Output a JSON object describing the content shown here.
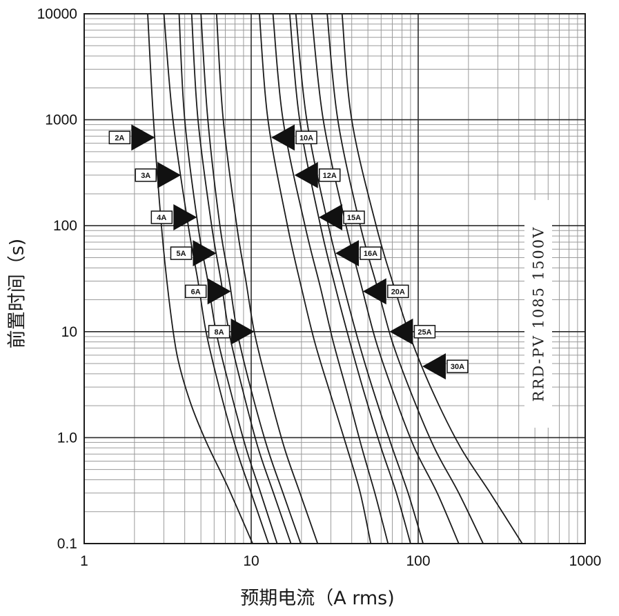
{
  "chart_data": {
    "type": "line",
    "title": "",
    "xlabel": "预期电流（A rms)",
    "ylabel": "前置时间（s)",
    "x_scale": "log",
    "y_scale": "log",
    "xlim": [
      1,
      1000
    ],
    "ylim": [
      0.1,
      10000
    ],
    "grid": true,
    "x_tick_labels": [
      "1",
      "10",
      "100",
      "1000"
    ],
    "y_tick_labels": [
      "10000",
      "1000",
      "100",
      "10",
      "1.0",
      "0.1"
    ],
    "x_ticks": [
      1,
      10,
      100,
      1000
    ],
    "y_ticks": [
      10000,
      1000,
      100,
      10,
      1,
      0.1
    ],
    "annotation": "RRD-PV 1085 1500V",
    "series": [
      {
        "name": "2A",
        "tag_time": 680,
        "tag_side": "left",
        "x": [
          2.4,
          2.6,
          2.9,
          3.2,
          3.6,
          4.3,
          5.4,
          7.2,
          10.2
        ],
        "y": [
          10000,
          1000,
          100,
          22,
          6,
          2.2,
          0.9,
          0.35,
          0.1
        ]
      },
      {
        "name": "3A",
        "tag_time": 300,
        "tag_side": "left",
        "x": [
          3.0,
          3.4,
          4.2,
          4.8,
          5.4,
          6.5,
          8.1,
          10.0,
          12.7
        ],
        "y": [
          10000,
          1000,
          100,
          30,
          9.5,
          2.8,
          0.8,
          0.3,
          0.1
        ]
      },
      {
        "name": "4A",
        "tag_time": 120,
        "tag_side": "left",
        "x": [
          3.7,
          4.0,
          4.8,
          5.5,
          6.2,
          7.5,
          9.3,
          11.4,
          14.3
        ],
        "y": [
          10000,
          1000,
          100,
          30,
          9.5,
          2.8,
          0.8,
          0.3,
          0.1
        ]
      },
      {
        "name": "5A",
        "tag_time": 55,
        "tag_side": "left",
        "x": [
          4.4,
          4.8,
          5.8,
          6.6,
          7.4,
          8.9,
          11.0,
          13.6,
          17.3
        ],
        "y": [
          10000,
          1000,
          100,
          30,
          9.5,
          2.8,
          0.8,
          0.3,
          0.1
        ]
      },
      {
        "name": "6A",
        "tag_time": 24,
        "tag_side": "left",
        "x": [
          5.0,
          5.5,
          6.5,
          7.4,
          8.3,
          10.0,
          12.5,
          15.5,
          19.8
        ],
        "y": [
          10000,
          1000,
          100,
          30,
          9.5,
          2.8,
          0.8,
          0.3,
          0.1
        ]
      },
      {
        "name": "8A",
        "tag_time": 10,
        "tag_side": "left",
        "x": [
          6.2,
          6.8,
          8.2,
          9.3,
          10.5,
          12.7,
          15.8,
          19.6,
          25.0
        ],
        "y": [
          10000,
          1000,
          100,
          30,
          9.5,
          2.8,
          0.8,
          0.3,
          0.1
        ]
      },
      {
        "name": "10A",
        "tag_time": 680,
        "tag_side": "right",
        "x": [
          11.2,
          12.6,
          16.5,
          20.0,
          24.0,
          30.0,
          37.5,
          45.0,
          52.0
        ],
        "y": [
          10000,
          1000,
          100,
          26,
          8.0,
          2.5,
          0.8,
          0.3,
          0.1
        ]
      },
      {
        "name": "12A",
        "tag_time": 300,
        "tag_side": "right",
        "x": [
          13.5,
          15.5,
          21.0,
          26.0,
          31.0,
          38.0,
          46.0,
          55.0,
          66.0
        ],
        "y": [
          10000,
          1000,
          100,
          26,
          8.0,
          2.5,
          0.8,
          0.3,
          0.1
        ]
      },
      {
        "name": "15A",
        "tag_time": 120,
        "tag_side": "right",
        "x": [
          17.0,
          19.5,
          26.0,
          32.0,
          39.0,
          48.0,
          60.0,
          74.0,
          90.0
        ],
        "y": [
          10000,
          1000,
          100,
          26,
          8.0,
          2.5,
          0.8,
          0.3,
          0.1
        ]
      },
      {
        "name": "16A",
        "tag_time": 55,
        "tag_side": "right",
        "x": [
          18.5,
          21.5,
          29.0,
          36.0,
          44.0,
          55.0,
          70.0,
          87.0,
          107.0
        ],
        "y": [
          10000,
          1000,
          100,
          26,
          8.0,
          2.5,
          0.8,
          0.3,
          0.1
        ]
      },
      {
        "name": "20A",
        "tag_time": 24,
        "tag_side": "right",
        "x": [
          23.0,
          27.0,
          37.0,
          46.0,
          56.0,
          72.0,
          95.0,
          130.0,
          175.0
        ],
        "y": [
          10000,
          1000,
          100,
          26,
          8.0,
          2.5,
          0.8,
          0.3,
          0.1
        ]
      },
      {
        "name": "25A",
        "tag_time": 10,
        "tag_side": "right",
        "x": [
          28.5,
          33.0,
          45.0,
          57.0,
          70.0,
          92.0,
          125.0,
          175.0,
          245.0
        ],
        "y": [
          10000,
          1000,
          100,
          26,
          8.0,
          2.5,
          0.8,
          0.3,
          0.1
        ]
      },
      {
        "name": "30A",
        "tag_time": 4.7,
        "tag_side": "right",
        "x": [
          35.0,
          40.0,
          56.0,
          72.0,
          92.0,
          125.0,
          180.0,
          270.0,
          420.0
        ],
        "y": [
          10000,
          1000,
          100,
          26,
          8.0,
          2.5,
          0.8,
          0.3,
          0.1
        ]
      }
    ]
  }
}
